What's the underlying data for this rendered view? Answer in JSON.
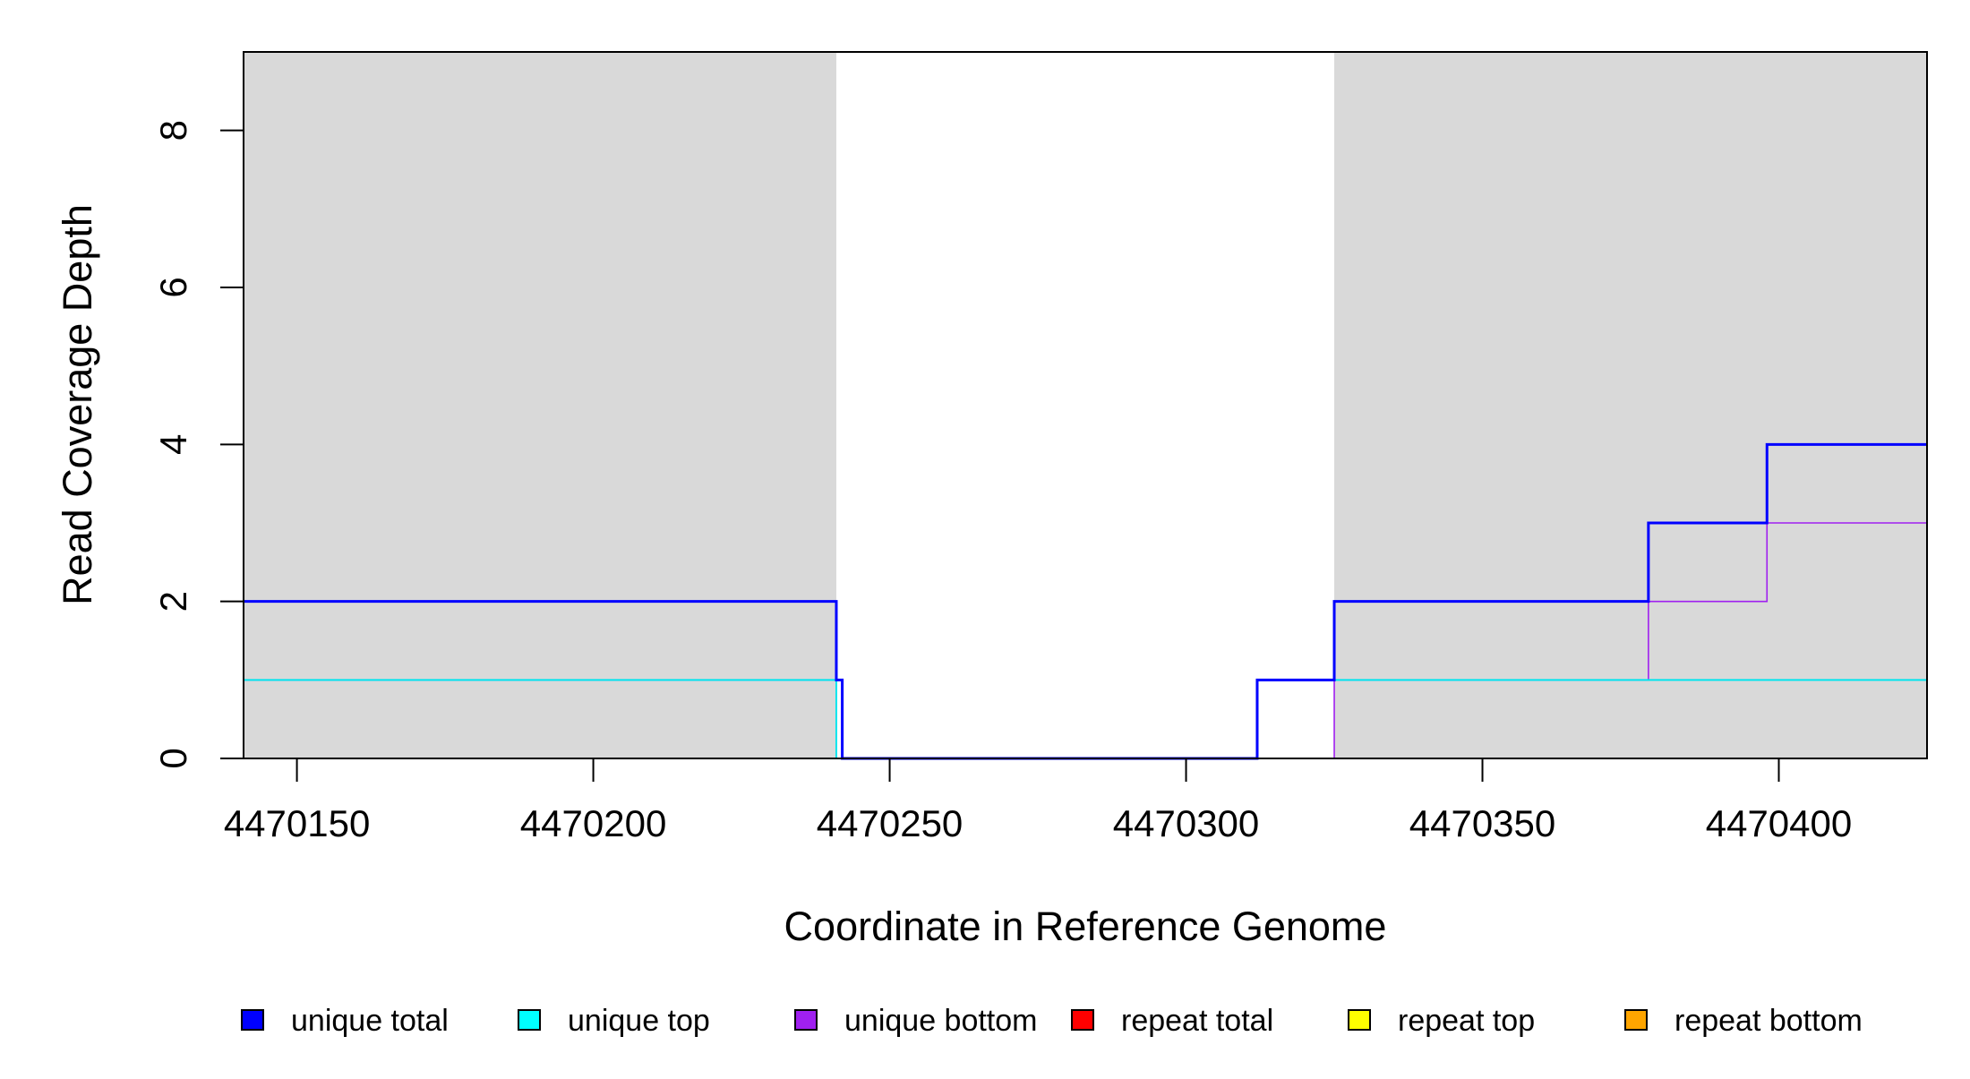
{
  "chart_data": {
    "type": "line",
    "xlabel": "Coordinate in Reference Genome",
    "ylabel": "Read Coverage Depth",
    "xlim": [
      4470141,
      4470425
    ],
    "ylim": [
      0,
      9
    ],
    "x_ticks": [
      4470150,
      4470200,
      4470250,
      4470300,
      4470350,
      4470400
    ],
    "x_tick_labels": [
      "4470150",
      "4470200",
      "4470250",
      "4470300",
      "4470350",
      "4470400"
    ],
    "y_ticks": [
      0,
      2,
      4,
      6,
      8
    ],
    "y_tick_labels": [
      "0",
      "2",
      "4",
      "6",
      "8"
    ],
    "shaded_regions": [
      {
        "x": [
          4470141,
          4470241
        ],
        "color": "#d9d9d9"
      },
      {
        "x": [
          4470325,
          4470425
        ],
        "color": "#d9d9d9"
      }
    ],
    "series": [
      {
        "name": "unique total",
        "color": "#0000ff",
        "stroke": 3,
        "x": [
          4470141,
          4470241,
          4470242,
          4470312,
          4470325,
          4470378,
          4470398,
          4470425
        ],
        "y": [
          2,
          1,
          0,
          1,
          2,
          3,
          4,
          4
        ]
      },
      {
        "name": "unique top",
        "color": "#00e5ee",
        "stroke": 2,
        "x": [
          4470141,
          4470241,
          4470312,
          4470325,
          4470425
        ],
        "y": [
          1,
          0,
          1,
          1,
          1
        ]
      },
      {
        "name": "unique bottom",
        "color": "#a020f0",
        "stroke": 1.6,
        "x": [
          4470141,
          4470242,
          4470325,
          4470378,
          4470398,
          4470425
        ],
        "y": [
          1,
          0,
          1,
          2,
          3,
          3
        ]
      },
      {
        "name": "repeat total",
        "color": "#ff0000",
        "stroke": 2,
        "x": [
          4470141,
          4470425
        ],
        "y": [
          0,
          0
        ]
      },
      {
        "name": "repeat top",
        "color": "#ffff00",
        "stroke": 2,
        "x": [
          4470141,
          4470425
        ],
        "y": [
          0,
          0
        ]
      },
      {
        "name": "repeat bottom",
        "color": "#ffa500",
        "stroke": 2,
        "x": [
          4470141,
          4470425
        ],
        "y": [
          0,
          0
        ]
      }
    ],
    "legend": {
      "placement": "bottom",
      "items": [
        {
          "label": "unique total",
          "color": "#0000ff"
        },
        {
          "label": "unique top",
          "color": "#00ffff"
        },
        {
          "label": "unique bottom",
          "color": "#a020f0"
        },
        {
          "label": "repeat total",
          "color": "#ff0000"
        },
        {
          "label": "repeat top",
          "color": "#ffff00"
        },
        {
          "label": "repeat bottom",
          "color": "#ffa500"
        }
      ]
    }
  }
}
